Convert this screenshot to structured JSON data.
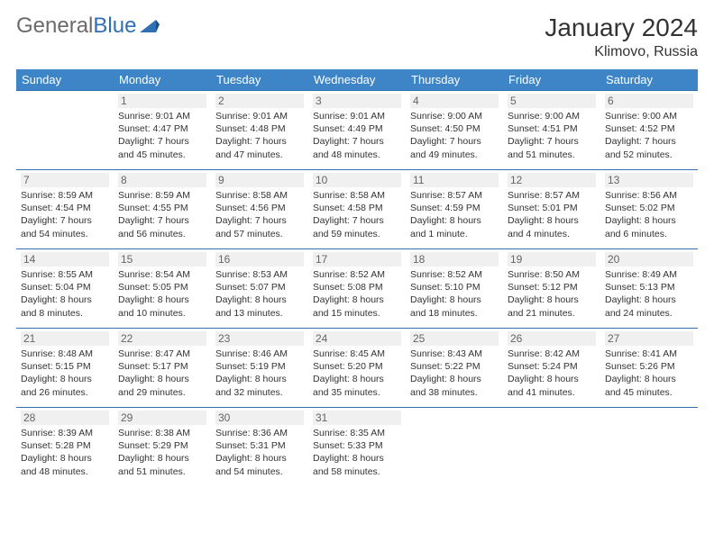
{
  "logo": {
    "general": "General",
    "blue": "Blue"
  },
  "title": "January 2024",
  "location": "Klimovo, Russia",
  "colors": {
    "header_bg": "#3d85c6",
    "header_text": "#ffffff",
    "rule": "#2f6fb3",
    "logo_gray": "#6b6b6b",
    "logo_blue": "#2f6fb3",
    "daynum_bg": "#f0f0f0",
    "text": "#333333",
    "background": "#ffffff"
  },
  "day_labels": [
    "Sunday",
    "Monday",
    "Tuesday",
    "Wednesday",
    "Thursday",
    "Friday",
    "Saturday"
  ],
  "weeks": [
    [
      null,
      {
        "n": "1",
        "sr": "9:01 AM",
        "ss": "4:47 PM",
        "dl": "7 hours and 45 minutes."
      },
      {
        "n": "2",
        "sr": "9:01 AM",
        "ss": "4:48 PM",
        "dl": "7 hours and 47 minutes."
      },
      {
        "n": "3",
        "sr": "9:01 AM",
        "ss": "4:49 PM",
        "dl": "7 hours and 48 minutes."
      },
      {
        "n": "4",
        "sr": "9:00 AM",
        "ss": "4:50 PM",
        "dl": "7 hours and 49 minutes."
      },
      {
        "n": "5",
        "sr": "9:00 AM",
        "ss": "4:51 PM",
        "dl": "7 hours and 51 minutes."
      },
      {
        "n": "6",
        "sr": "9:00 AM",
        "ss": "4:52 PM",
        "dl": "7 hours and 52 minutes."
      }
    ],
    [
      {
        "n": "7",
        "sr": "8:59 AM",
        "ss": "4:54 PM",
        "dl": "7 hours and 54 minutes."
      },
      {
        "n": "8",
        "sr": "8:59 AM",
        "ss": "4:55 PM",
        "dl": "7 hours and 56 minutes."
      },
      {
        "n": "9",
        "sr": "8:58 AM",
        "ss": "4:56 PM",
        "dl": "7 hours and 57 minutes."
      },
      {
        "n": "10",
        "sr": "8:58 AM",
        "ss": "4:58 PM",
        "dl": "7 hours and 59 minutes."
      },
      {
        "n": "11",
        "sr": "8:57 AM",
        "ss": "4:59 PM",
        "dl": "8 hours and 1 minute."
      },
      {
        "n": "12",
        "sr": "8:57 AM",
        "ss": "5:01 PM",
        "dl": "8 hours and 4 minutes."
      },
      {
        "n": "13",
        "sr": "8:56 AM",
        "ss": "5:02 PM",
        "dl": "8 hours and 6 minutes."
      }
    ],
    [
      {
        "n": "14",
        "sr": "8:55 AM",
        "ss": "5:04 PM",
        "dl": "8 hours and 8 minutes."
      },
      {
        "n": "15",
        "sr": "8:54 AM",
        "ss": "5:05 PM",
        "dl": "8 hours and 10 minutes."
      },
      {
        "n": "16",
        "sr": "8:53 AM",
        "ss": "5:07 PM",
        "dl": "8 hours and 13 minutes."
      },
      {
        "n": "17",
        "sr": "8:52 AM",
        "ss": "5:08 PM",
        "dl": "8 hours and 15 minutes."
      },
      {
        "n": "18",
        "sr": "8:52 AM",
        "ss": "5:10 PM",
        "dl": "8 hours and 18 minutes."
      },
      {
        "n": "19",
        "sr": "8:50 AM",
        "ss": "5:12 PM",
        "dl": "8 hours and 21 minutes."
      },
      {
        "n": "20",
        "sr": "8:49 AM",
        "ss": "5:13 PM",
        "dl": "8 hours and 24 minutes."
      }
    ],
    [
      {
        "n": "21",
        "sr": "8:48 AM",
        "ss": "5:15 PM",
        "dl": "8 hours and 26 minutes."
      },
      {
        "n": "22",
        "sr": "8:47 AM",
        "ss": "5:17 PM",
        "dl": "8 hours and 29 minutes."
      },
      {
        "n": "23",
        "sr": "8:46 AM",
        "ss": "5:19 PM",
        "dl": "8 hours and 32 minutes."
      },
      {
        "n": "24",
        "sr": "8:45 AM",
        "ss": "5:20 PM",
        "dl": "8 hours and 35 minutes."
      },
      {
        "n": "25",
        "sr": "8:43 AM",
        "ss": "5:22 PM",
        "dl": "8 hours and 38 minutes."
      },
      {
        "n": "26",
        "sr": "8:42 AM",
        "ss": "5:24 PM",
        "dl": "8 hours and 41 minutes."
      },
      {
        "n": "27",
        "sr": "8:41 AM",
        "ss": "5:26 PM",
        "dl": "8 hours and 45 minutes."
      }
    ],
    [
      {
        "n": "28",
        "sr": "8:39 AM",
        "ss": "5:28 PM",
        "dl": "8 hours and 48 minutes."
      },
      {
        "n": "29",
        "sr": "8:38 AM",
        "ss": "5:29 PM",
        "dl": "8 hours and 51 minutes."
      },
      {
        "n": "30",
        "sr": "8:36 AM",
        "ss": "5:31 PM",
        "dl": "8 hours and 54 minutes."
      },
      {
        "n": "31",
        "sr": "8:35 AM",
        "ss": "5:33 PM",
        "dl": "8 hours and 58 minutes."
      },
      null,
      null,
      null
    ]
  ],
  "labels": {
    "sunrise": "Sunrise: ",
    "sunset": "Sunset: ",
    "daylight": "Daylight: "
  }
}
